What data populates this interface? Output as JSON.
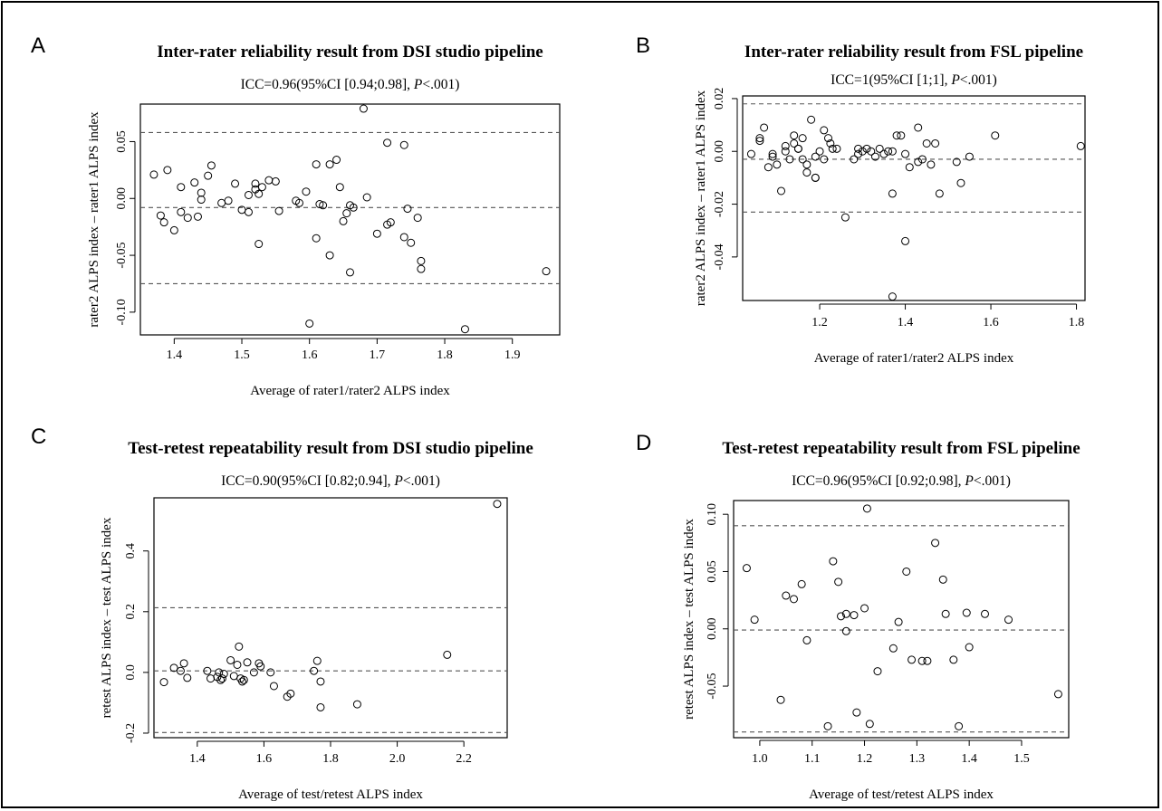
{
  "chart_data": [
    {
      "type": "scatter",
      "panel_label": "A",
      "title": "Inter-rater reliability result from DSI studio pipeline",
      "subtitle_prefix": "ICC=0.96(95%CI [0.94;0.98], ",
      "subtitle_p": "P",
      "subtitle_suffix": "<.001)",
      "xlabel": "Average of rater1/rater2 ALPS index",
      "ylabel": "rater2 ALPS index – rater1 ALPS index",
      "xticks": [
        1.4,
        1.5,
        1.6,
        1.7,
        1.8,
        1.9
      ],
      "yticks": [
        -0.1,
        -0.05,
        0.0,
        0.05
      ],
      "ytick_labels": [
        "-0.10",
        "-0.05",
        "0.00",
        "0.05"
      ],
      "xlim": [
        1.35,
        1.97
      ],
      "ylim": [
        -0.12,
        0.083
      ],
      "hlines": [
        0.058,
        -0.008,
        -0.075
      ],
      "points": [
        [
          1.37,
          0.021
        ],
        [
          1.38,
          -0.015
        ],
        [
          1.385,
          -0.021
        ],
        [
          1.39,
          0.025
        ],
        [
          1.4,
          -0.028
        ],
        [
          1.41,
          0.01
        ],
        [
          1.41,
          -0.012
        ],
        [
          1.42,
          -0.017
        ],
        [
          1.43,
          0.014
        ],
        [
          1.435,
          -0.016
        ],
        [
          1.44,
          0.005
        ],
        [
          1.44,
          -0.001
        ],
        [
          1.45,
          0.02
        ],
        [
          1.455,
          0.029
        ],
        [
          1.47,
          -0.004
        ],
        [
          1.48,
          -0.002
        ],
        [
          1.49,
          0.013
        ],
        [
          1.5,
          -0.01
        ],
        [
          1.51,
          -0.012
        ],
        [
          1.51,
          0.003
        ],
        [
          1.52,
          0.008
        ],
        [
          1.52,
          0.013
        ],
        [
          1.525,
          -0.04
        ],
        [
          1.525,
          0.004
        ],
        [
          1.53,
          0.01
        ],
        [
          1.54,
          0.016
        ],
        [
          1.55,
          0.015
        ],
        [
          1.555,
          -0.011
        ],
        [
          1.58,
          -0.002
        ],
        [
          1.585,
          -0.004
        ],
        [
          1.595,
          0.006
        ],
        [
          1.6,
          -0.11
        ],
        [
          1.61,
          0.03
        ],
        [
          1.61,
          -0.035
        ],
        [
          1.615,
          -0.005
        ],
        [
          1.62,
          -0.006
        ],
        [
          1.63,
          0.03
        ],
        [
          1.63,
          -0.05
        ],
        [
          1.64,
          0.034
        ],
        [
          1.645,
          0.01
        ],
        [
          1.65,
          -0.02
        ],
        [
          1.655,
          -0.013
        ],
        [
          1.66,
          -0.006
        ],
        [
          1.66,
          -0.065
        ],
        [
          1.665,
          -0.008
        ],
        [
          1.68,
          0.079
        ],
        [
          1.685,
          0.001
        ],
        [
          1.7,
          -0.031
        ],
        [
          1.715,
          0.049
        ],
        [
          1.715,
          -0.023
        ],
        [
          1.72,
          -0.021
        ],
        [
          1.74,
          0.047
        ],
        [
          1.74,
          -0.034
        ],
        [
          1.745,
          -0.009
        ],
        [
          1.75,
          -0.039
        ],
        [
          1.76,
          -0.017
        ],
        [
          1.765,
          -0.055
        ],
        [
          1.765,
          -0.062
        ],
        [
          1.83,
          -0.115
        ],
        [
          1.95,
          -0.064
        ]
      ]
    },
    {
      "type": "scatter",
      "panel_label": "B",
      "title": "Inter-rater reliability result from FSL pipeline",
      "subtitle_prefix": "ICC=1(95%CI [1;1], ",
      "subtitle_p": "P",
      "subtitle_suffix": "<.001)",
      "xlabel": "Average of rater1/rater2 ALPS index",
      "ylabel": "rater2 ALPS index – rater1 ALPS index",
      "xticks": [
        1.2,
        1.4,
        1.6,
        1.8
      ],
      "yticks": [
        -0.04,
        -0.02,
        0.0,
        0.02
      ],
      "ytick_labels": [
        "-0.04",
        "-0.02",
        "0.00",
        "0.02"
      ],
      "xlim": [
        1.02,
        1.82
      ],
      "ylim": [
        -0.0565,
        0.021
      ],
      "hlines": [
        0.018,
        -0.003,
        -0.023
      ],
      "points": [
        [
          1.04,
          -0.001
        ],
        [
          1.06,
          0.005
        ],
        [
          1.06,
          0.004
        ],
        [
          1.07,
          0.009
        ],
        [
          1.08,
          -0.006
        ],
        [
          1.09,
          -0.002
        ],
        [
          1.09,
          -0.001
        ],
        [
          1.1,
          -0.005
        ],
        [
          1.11,
          -0.015
        ],
        [
          1.12,
          0.002
        ],
        [
          1.12,
          0.0
        ],
        [
          1.13,
          -0.003
        ],
        [
          1.14,
          0.006
        ],
        [
          1.14,
          0.003
        ],
        [
          1.15,
          0.001
        ],
        [
          1.15,
          0.001
        ],
        [
          1.16,
          -0.003
        ],
        [
          1.16,
          0.005
        ],
        [
          1.17,
          -0.008
        ],
        [
          1.17,
          -0.005
        ],
        [
          1.18,
          0.012
        ],
        [
          1.19,
          -0.01
        ],
        [
          1.19,
          -0.01
        ],
        [
          1.19,
          -0.002
        ],
        [
          1.2,
          0.0
        ],
        [
          1.21,
          -0.003
        ],
        [
          1.21,
          0.008
        ],
        [
          1.22,
          0.005
        ],
        [
          1.225,
          0.003
        ],
        [
          1.23,
          0.001
        ],
        [
          1.24,
          0.001
        ],
        [
          1.26,
          -0.025
        ],
        [
          1.28,
          -0.003
        ],
        [
          1.29,
          0.001
        ],
        [
          1.29,
          -0.001
        ],
        [
          1.3,
          0.0
        ],
        [
          1.31,
          0.001
        ],
        [
          1.32,
          0.0
        ],
        [
          1.33,
          -0.002
        ],
        [
          1.34,
          0.001
        ],
        [
          1.35,
          -0.001
        ],
        [
          1.36,
          0.0
        ],
        [
          1.37,
          0.0
        ],
        [
          1.37,
          -0.016
        ],
        [
          1.37,
          -0.055
        ],
        [
          1.38,
          0.006
        ],
        [
          1.39,
          0.006
        ],
        [
          1.4,
          -0.034
        ],
        [
          1.4,
          -0.001
        ],
        [
          1.41,
          -0.006
        ],
        [
          1.43,
          -0.004
        ],
        [
          1.43,
          0.009
        ],
        [
          1.44,
          -0.003
        ],
        [
          1.45,
          0.003
        ],
        [
          1.46,
          -0.005
        ],
        [
          1.47,
          0.003
        ],
        [
          1.48,
          -0.016
        ],
        [
          1.52,
          -0.004
        ],
        [
          1.53,
          -0.012
        ],
        [
          1.55,
          -0.002
        ],
        [
          1.61,
          0.006
        ],
        [
          1.81,
          0.002
        ]
      ]
    },
    {
      "type": "scatter",
      "panel_label": "C",
      "title": "Test-retest repeatability result from DSI studio pipeline",
      "subtitle_prefix": "ICC=0.90(95%CI [0.82;0.94], ",
      "subtitle_p": "P",
      "subtitle_suffix": "<.001)",
      "xlabel": "Average of test/retest ALPS index",
      "ylabel": "retest ALPS index – test ALPS index",
      "xticks": [
        1.4,
        1.6,
        1.8,
        2.0,
        2.2
      ],
      "yticks": [
        -0.2,
        0.0,
        0.2,
        0.4
      ],
      "ytick_labels": [
        "-0.2",
        "0.0",
        "0.2",
        "0.4"
      ],
      "xlim": [
        1.27,
        2.33
      ],
      "ylim": [
        -0.215,
        0.575
      ],
      "hlines": [
        0.213,
        0.005,
        -0.198
      ],
      "points": [
        [
          1.3,
          -0.032
        ],
        [
          1.33,
          0.015
        ],
        [
          1.35,
          0.005
        ],
        [
          1.36,
          0.03
        ],
        [
          1.37,
          -0.018
        ],
        [
          1.43,
          0.005
        ],
        [
          1.44,
          -0.02
        ],
        [
          1.46,
          -0.015
        ],
        [
          1.465,
          0.0
        ],
        [
          1.47,
          -0.025
        ],
        [
          1.475,
          -0.02
        ],
        [
          1.48,
          -0.005
        ],
        [
          1.5,
          0.04
        ],
        [
          1.51,
          -0.012
        ],
        [
          1.52,
          0.025
        ],
        [
          1.525,
          0.085
        ],
        [
          1.53,
          -0.02
        ],
        [
          1.535,
          -0.03
        ],
        [
          1.54,
          -0.025
        ],
        [
          1.55,
          0.033
        ],
        [
          1.57,
          0.0
        ],
        [
          1.585,
          0.03
        ],
        [
          1.59,
          0.02
        ],
        [
          1.62,
          0.0
        ],
        [
          1.63,
          -0.045
        ],
        [
          1.67,
          -0.08
        ],
        [
          1.68,
          -0.07
        ],
        [
          1.75,
          0.005
        ],
        [
          1.76,
          0.038
        ],
        [
          1.77,
          -0.03
        ],
        [
          1.77,
          -0.115
        ],
        [
          1.88,
          -0.105
        ],
        [
          2.15,
          0.058
        ],
        [
          2.3,
          0.555
        ]
      ]
    },
    {
      "type": "scatter",
      "panel_label": "D",
      "title": "Test-retest repeatability result from FSL pipeline",
      "subtitle_prefix": "ICC=0.96(95%CI [0.92;0.98], ",
      "subtitle_p": "P",
      "subtitle_suffix": "<.001)",
      "xlabel": "Average of test/retest ALPS index",
      "ylabel": "retest ALPS index – test ALPS index",
      "xticks": [
        1.0,
        1.1,
        1.2,
        1.3,
        1.4,
        1.5
      ],
      "yticks": [
        -0.05,
        0.0,
        0.05,
        0.1
      ],
      "ytick_labels": [
        "-0.05",
        "0.00",
        "0.05",
        "0.10"
      ],
      "xlim": [
        0.95,
        1.59
      ],
      "ylim": [
        -0.095,
        0.112
      ],
      "hlines": [
        0.09,
        -0.001,
        -0.09
      ],
      "points": [
        [
          0.975,
          0.053
        ],
        [
          0.99,
          0.008
        ],
        [
          1.04,
          -0.062
        ],
        [
          1.05,
          0.029
        ],
        [
          1.065,
          0.026
        ],
        [
          1.08,
          0.039
        ],
        [
          1.09,
          -0.01
        ],
        [
          1.13,
          -0.085
        ],
        [
          1.14,
          0.059
        ],
        [
          1.15,
          0.041
        ],
        [
          1.155,
          0.011
        ],
        [
          1.165,
          0.013
        ],
        [
          1.165,
          -0.002
        ],
        [
          1.18,
          0.012
        ],
        [
          1.185,
          -0.073
        ],
        [
          1.2,
          0.018
        ],
        [
          1.205,
          0.105
        ],
        [
          1.21,
          -0.083
        ],
        [
          1.225,
          -0.037
        ],
        [
          1.255,
          -0.017
        ],
        [
          1.265,
          0.006
        ],
        [
          1.28,
          0.05
        ],
        [
          1.29,
          -0.027
        ],
        [
          1.31,
          -0.028
        ],
        [
          1.32,
          -0.028
        ],
        [
          1.335,
          0.075
        ],
        [
          1.35,
          0.043
        ],
        [
          1.355,
          0.013
        ],
        [
          1.37,
          -0.027
        ],
        [
          1.38,
          -0.085
        ],
        [
          1.395,
          0.014
        ],
        [
          1.4,
          -0.016
        ],
        [
          1.43,
          0.013
        ],
        [
          1.475,
          0.008
        ],
        [
          1.57,
          -0.057
        ]
      ]
    }
  ]
}
